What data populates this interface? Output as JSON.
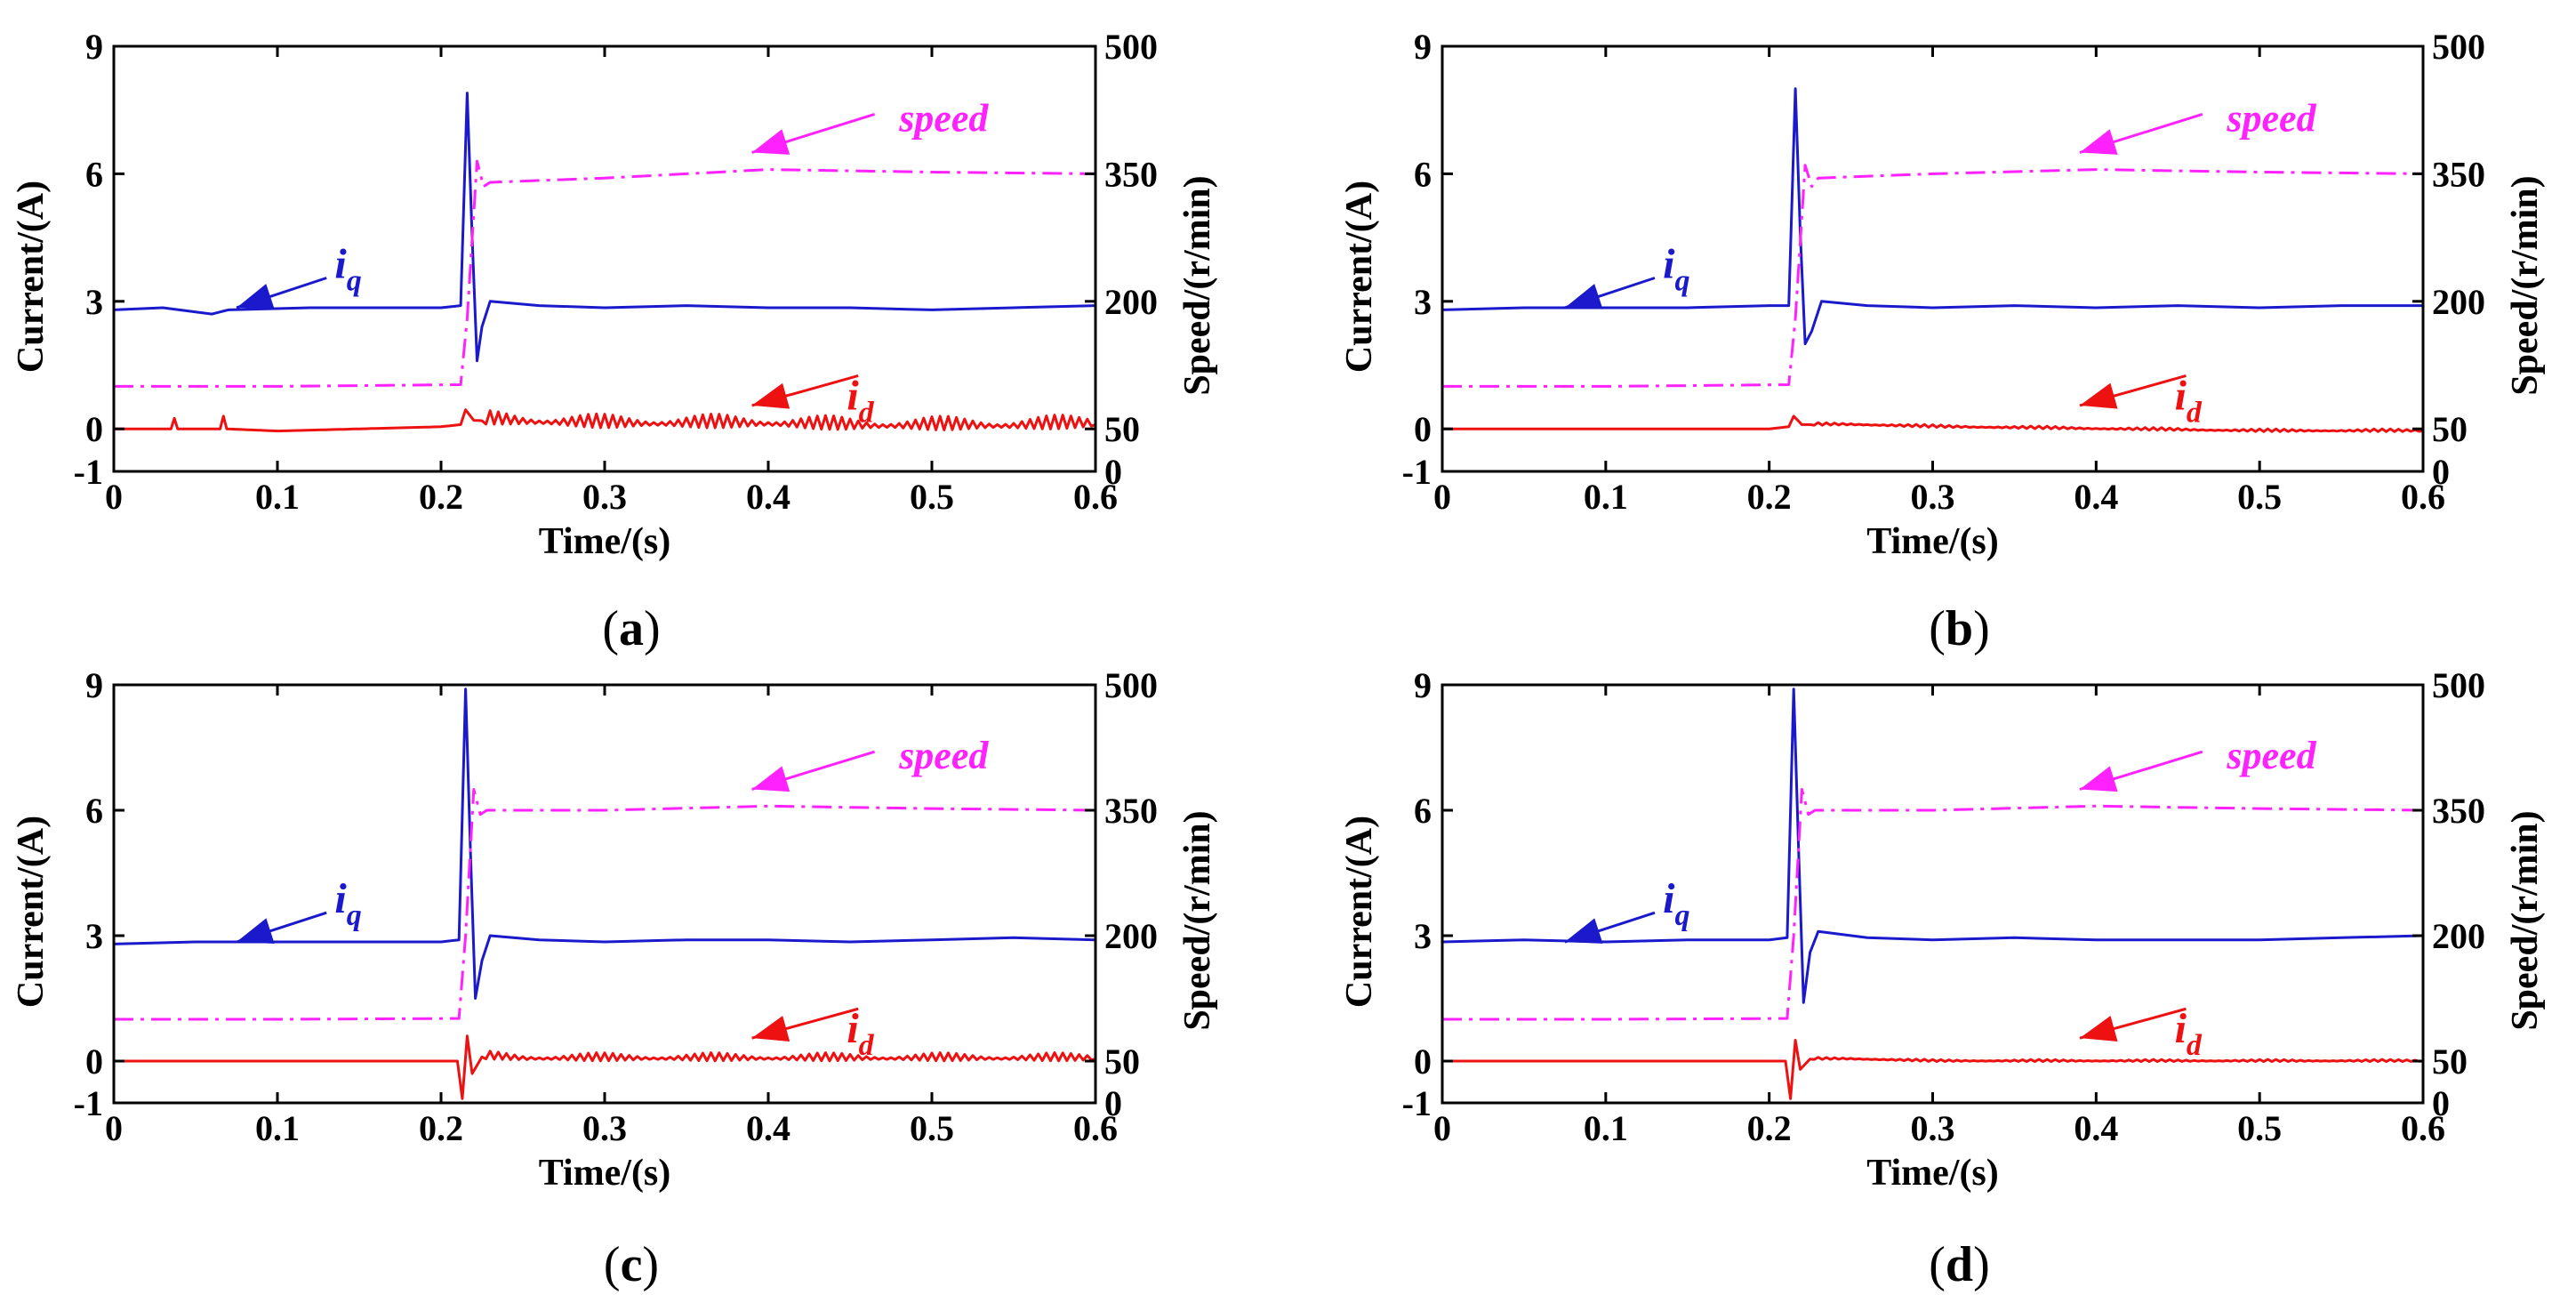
{
  "chart_data": [
    {
      "type": "line",
      "caption": "a",
      "xlabel": "Time/(s)",
      "ylabel_left": "Current/(A)",
      "ylabel_right": "Speed/(r/min)",
      "xlim": [
        0,
        0.6
      ],
      "ylim_left": [
        -1,
        9
      ],
      "ylim_right": [
        0,
        500
      ],
      "xticks": [
        "0",
        "0.1",
        "0.2",
        "0.3",
        "0.4",
        "0.5",
        "0.6"
      ],
      "yticks_left": [
        "9",
        "6",
        "3",
        "0",
        "-1"
      ],
      "yticks_right": [
        "500",
        "350",
        "200",
        "50",
        "0"
      ],
      "grid": false,
      "colors": {
        "iq": "#1a1acc",
        "id": "#ee1111",
        "speed": "#ff22ff"
      },
      "annotations": {
        "iq": "i",
        "iq_sub": "q",
        "id": "i",
        "id_sub": "d",
        "speed": "speed"
      },
      "series": [
        {
          "name": "iq",
          "axis": "left",
          "color": "#1a1acc",
          "style": "solid",
          "x": [
            0,
            0.03,
            0.06,
            0.07,
            0.12,
            0.2,
            0.212,
            0.216,
            0.219,
            0.222,
            0.225,
            0.23,
            0.26,
            0.3,
            0.35,
            0.4,
            0.45,
            0.5,
            0.55,
            0.6
          ],
          "y": [
            2.8,
            2.85,
            2.7,
            2.8,
            2.85,
            2.85,
            2.9,
            7.9,
            4.5,
            1.6,
            2.4,
            3.0,
            2.9,
            2.85,
            2.9,
            2.85,
            2.85,
            2.8,
            2.85,
            2.9
          ]
        },
        {
          "name": "id",
          "axis": "left",
          "color": "#ee1111",
          "style": "solid",
          "x": [
            0,
            0.035,
            0.037,
            0.039,
            0.065,
            0.067,
            0.069,
            0.1,
            0.15,
            0.2,
            0.212,
            0.215,
            0.22,
            0.25,
            0.3,
            0.35,
            0.4,
            0.45,
            0.5,
            0.55,
            0.6
          ],
          "y": [
            0.0,
            0.0,
            0.25,
            0.0,
            0.0,
            0.3,
            0.0,
            -0.05,
            0.0,
            0.05,
            0.1,
            0.45,
            0.2,
            0.15,
            0.1,
            0.1,
            0.1,
            0.05,
            0.05,
            0.05,
            0.1
          ],
          "ripple": 0.25
        },
        {
          "name": "speed",
          "axis": "right",
          "color": "#ff22ff",
          "style": "dashdot",
          "x": [
            0,
            0.1,
            0.212,
            0.216,
            0.222,
            0.226,
            0.23,
            0.3,
            0.4,
            0.5,
            0.6
          ],
          "y": [
            100,
            100,
            102,
            180,
            365,
            335,
            340,
            345,
            355,
            352,
            350
          ]
        }
      ]
    },
    {
      "type": "line",
      "caption": "b",
      "xlabel": "Time/(s)",
      "ylabel_left": "Current/(A)",
      "ylabel_right": "Speed/(r/min)",
      "xlim": [
        0,
        0.6
      ],
      "ylim_left": [
        -1,
        9
      ],
      "ylim_right": [
        0,
        500
      ],
      "xticks": [
        "0",
        "0.1",
        "0.2",
        "0.3",
        "0.4",
        "0.5",
        "0.6"
      ],
      "yticks_left": [
        "9",
        "6",
        "3",
        "0",
        "-1"
      ],
      "yticks_right": [
        "500",
        "350",
        "200",
        "50",
        "0"
      ],
      "grid": false,
      "colors": {
        "iq": "#1a1acc",
        "id": "#ee1111",
        "speed": "#ff22ff"
      },
      "annotations": {
        "iq": "i",
        "iq_sub": "q",
        "id": "i",
        "id_sub": "d",
        "speed": "speed"
      },
      "series": [
        {
          "name": "iq",
          "axis": "left",
          "color": "#1a1acc",
          "style": "solid",
          "x": [
            0,
            0.05,
            0.1,
            0.15,
            0.2,
            0.212,
            0.216,
            0.219,
            0.222,
            0.226,
            0.232,
            0.26,
            0.3,
            0.35,
            0.4,
            0.45,
            0.5,
            0.55,
            0.6
          ],
          "y": [
            2.8,
            2.85,
            2.85,
            2.85,
            2.9,
            2.9,
            8.0,
            4.6,
            2.0,
            2.3,
            3.0,
            2.9,
            2.85,
            2.9,
            2.85,
            2.9,
            2.85,
            2.9,
            2.9
          ]
        },
        {
          "name": "id",
          "axis": "left",
          "color": "#ee1111",
          "style": "solid",
          "x": [
            0,
            0.1,
            0.2,
            0.212,
            0.215,
            0.22,
            0.25,
            0.3,
            0.4,
            0.5,
            0.6
          ],
          "y": [
            0.0,
            0.0,
            0.0,
            0.05,
            0.3,
            0.1,
            0.1,
            0.05,
            0.0,
            -0.05,
            -0.05
          ],
          "ripple": 0.05
        },
        {
          "name": "speed",
          "axis": "right",
          "color": "#ff22ff",
          "style": "dashdot",
          "x": [
            0,
            0.1,
            0.212,
            0.216,
            0.222,
            0.226,
            0.23,
            0.3,
            0.4,
            0.5,
            0.6
          ],
          "y": [
            100,
            100,
            102,
            180,
            360,
            335,
            345,
            350,
            355,
            352,
            350
          ]
        }
      ]
    },
    {
      "type": "line",
      "caption": "c",
      "xlabel": "Time/(s)",
      "ylabel_left": "Current/(A)",
      "ylabel_right": "Speed/(r/min)",
      "xlim": [
        0,
        0.6
      ],
      "ylim_left": [
        -1,
        9
      ],
      "ylim_right": [
        0,
        500
      ],
      "xticks": [
        "0",
        "0.1",
        "0.2",
        "0.3",
        "0.4",
        "0.5",
        "0.6"
      ],
      "yticks_left": [
        "9",
        "6",
        "3",
        "0",
        "-1"
      ],
      "yticks_right": [
        "500",
        "350",
        "200",
        "50",
        "0"
      ],
      "grid": false,
      "colors": {
        "iq": "#1a1acc",
        "id": "#ee1111",
        "speed": "#ff22ff"
      },
      "annotations": {
        "iq": "i",
        "iq_sub": "q",
        "id": "i",
        "id_sub": "d",
        "speed": "speed"
      },
      "series": [
        {
          "name": "iq",
          "axis": "left",
          "color": "#1a1acc",
          "style": "solid",
          "x": [
            0,
            0.05,
            0.1,
            0.15,
            0.2,
            0.211,
            0.215,
            0.218,
            0.221,
            0.225,
            0.23,
            0.26,
            0.3,
            0.35,
            0.4,
            0.45,
            0.5,
            0.55,
            0.6
          ],
          "y": [
            2.8,
            2.85,
            2.85,
            2.85,
            2.85,
            2.9,
            8.9,
            5.0,
            1.5,
            2.4,
            3.0,
            2.9,
            2.85,
            2.9,
            2.9,
            2.85,
            2.9,
            2.95,
            2.9
          ]
        },
        {
          "name": "id",
          "axis": "left",
          "color": "#ee1111",
          "style": "solid",
          "x": [
            0,
            0.1,
            0.2,
            0.21,
            0.213,
            0.216,
            0.219,
            0.225,
            0.25,
            0.3,
            0.4,
            0.5,
            0.6
          ],
          "y": [
            0.0,
            0.0,
            0.0,
            0.0,
            -0.9,
            0.6,
            -0.3,
            0.1,
            0.05,
            0.05,
            0.05,
            0.05,
            0.05
          ],
          "ripple": 0.15
        },
        {
          "name": "speed",
          "axis": "right",
          "color": "#ff22ff",
          "style": "dashdot",
          "x": [
            0,
            0.1,
            0.211,
            0.215,
            0.22,
            0.224,
            0.228,
            0.3,
            0.4,
            0.5,
            0.6
          ],
          "y": [
            100,
            100,
            101,
            200,
            375,
            345,
            350,
            350,
            355,
            352,
            350
          ]
        }
      ]
    },
    {
      "type": "line",
      "caption": "d",
      "xlabel": "Time/(s)",
      "ylabel_left": "Current/(A)",
      "ylabel_right": "Speed/(r/min)",
      "xlim": [
        0,
        0.6
      ],
      "ylim_left": [
        -1,
        9
      ],
      "ylim_right": [
        0,
        500
      ],
      "xticks": [
        "0",
        "0.1",
        "0.2",
        "0.3",
        "0.4",
        "0.5",
        "0.6"
      ],
      "yticks_left": [
        "9",
        "6",
        "3",
        "0",
        "-1"
      ],
      "yticks_right": [
        "500",
        "350",
        "200",
        "50",
        "0"
      ],
      "grid": false,
      "colors": {
        "iq": "#1a1acc",
        "id": "#ee1111",
        "speed": "#ff22ff"
      },
      "annotations": {
        "iq": "i",
        "iq_sub": "q",
        "id": "i",
        "id_sub": "d",
        "speed": "speed"
      },
      "series": [
        {
          "name": "iq",
          "axis": "left",
          "color": "#1a1acc",
          "style": "solid",
          "x": [
            0,
            0.05,
            0.1,
            0.15,
            0.2,
            0.211,
            0.215,
            0.218,
            0.221,
            0.225,
            0.23,
            0.26,
            0.3,
            0.35,
            0.4,
            0.45,
            0.5,
            0.55,
            0.6
          ],
          "y": [
            2.85,
            2.9,
            2.85,
            2.9,
            2.9,
            2.95,
            8.9,
            5.0,
            1.4,
            2.6,
            3.1,
            2.95,
            2.9,
            2.95,
            2.9,
            2.9,
            2.9,
            2.95,
            3.0
          ]
        },
        {
          "name": "id",
          "axis": "left",
          "color": "#ee1111",
          "style": "solid",
          "x": [
            0,
            0.1,
            0.2,
            0.21,
            0.213,
            0.216,
            0.219,
            0.225,
            0.25,
            0.3,
            0.4,
            0.5,
            0.6
          ],
          "y": [
            0.0,
            0.0,
            0.0,
            0.0,
            -0.9,
            0.5,
            -0.2,
            0.05,
            0.05,
            0.0,
            0.0,
            0.0,
            0.0
          ],
          "ripple": 0.04
        },
        {
          "name": "speed",
          "axis": "right",
          "color": "#ff22ff",
          "style": "dashdot",
          "x": [
            0,
            0.1,
            0.211,
            0.215,
            0.22,
            0.224,
            0.228,
            0.3,
            0.4,
            0.5,
            0.6
          ],
          "y": [
            100,
            100,
            101,
            200,
            375,
            345,
            350,
            350,
            355,
            352,
            350
          ]
        }
      ]
    }
  ]
}
